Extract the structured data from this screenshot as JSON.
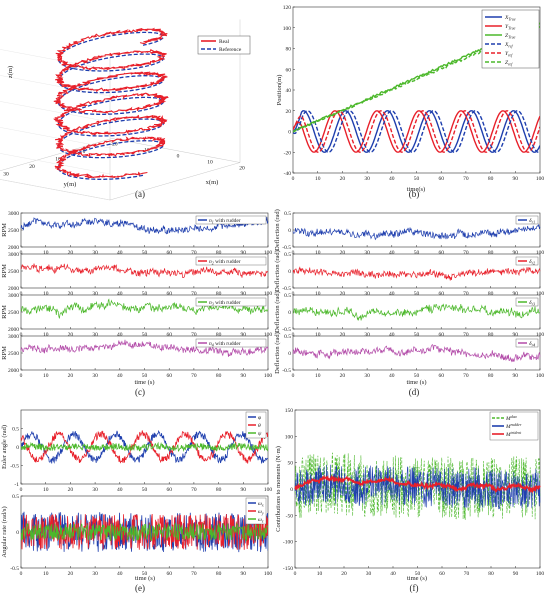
{
  "figure": {
    "captions": [
      "(a)",
      "(b)",
      "(c)",
      "(d)",
      "(e)",
      "(f)"
    ]
  },
  "chart_data": [
    {
      "id": "a",
      "type": "line",
      "projection": "3d",
      "legend": [
        "Real",
        "Reference"
      ],
      "legend_position": "top-right",
      "colors": [
        "#e8202a",
        "#1f3fae"
      ],
      "zlabel": "z(m)",
      "ylabel_3d": "y(m)",
      "xlabel_3d": "x(m)",
      "zticks": [
        "0",
        "20",
        "40",
        "60",
        "80",
        "100"
      ],
      "yticks": [
        "40",
        "30",
        "20",
        "10",
        "0"
      ],
      "xticks": [
        "-20",
        "-10",
        "0",
        "10",
        "20"
      ],
      "helix": {
        "turns": 6,
        "z_range": [
          0,
          100
        ],
        "radius_m": 10,
        "period_s": 17,
        "duration_s": 100
      }
    },
    {
      "id": "b",
      "type": "line",
      "ylabel": "Position(m)",
      "xlabel": "time(s)",
      "xlim": [
        0,
        100
      ],
      "ylim": [
        -40,
        120
      ],
      "xticks": [
        "0",
        "10",
        "20",
        "30",
        "40",
        "50",
        "60",
        "70",
        "80",
        "90",
        "100"
      ],
      "yticks": [
        "-40",
        "-20",
        "0",
        "20",
        "40",
        "60",
        "80",
        "100",
        "120"
      ],
      "legend_position": "top-right",
      "series": [
        {
          "name": "X_True",
          "sub": "True",
          "base": "X",
          "color": "#1f3fae",
          "style": "solid",
          "kind": "sine",
          "amp": 20,
          "period": 17,
          "phase": 0,
          "offset": 0
        },
        {
          "name": "Y_True",
          "sub": "True",
          "base": "Y",
          "color": "#e8202a",
          "style": "solid",
          "kind": "sine",
          "amp": 20,
          "period": 17,
          "phase": 1.5708,
          "offset": 0
        },
        {
          "name": "Z_True",
          "sub": "True",
          "base": "Z",
          "color": "#4cb82b",
          "style": "solid",
          "kind": "ramp",
          "start": 0,
          "end": 104
        },
        {
          "name": "X_ref",
          "sub": "ref",
          "base": "X",
          "color": "#1f3fae",
          "style": "dashed",
          "kind": "sine",
          "amp": 20,
          "period": 17,
          "phase": -0.6,
          "offset": 0
        },
        {
          "name": "Y_ref",
          "sub": "ref",
          "base": "Y",
          "color": "#e8202a",
          "style": "dashed",
          "kind": "sine",
          "amp": 20,
          "period": 17,
          "phase": 0.97,
          "offset": 0
        },
        {
          "name": "Z_ref",
          "sub": "ref",
          "base": "Z",
          "color": "#4cb82b",
          "style": "dashed",
          "kind": "ramp",
          "start": 0,
          "end": 101
        }
      ]
    },
    {
      "id": "c",
      "type": "line",
      "xlabel": "time (s)",
      "xlim": [
        0,
        100
      ],
      "xticks": [
        "0",
        "10",
        "20",
        "30",
        "40",
        "50",
        "60",
        "70",
        "80",
        "90",
        "100"
      ],
      "panels": [
        {
          "ylabel": "RPM",
          "ylim": [
            2000,
            3000
          ],
          "yticks": [
            "2000",
            "2500",
            "3000"
          ],
          "color": "#1f3fae",
          "legend": "n",
          "legend_sub": "1",
          "legend_tail": " with rudder",
          "mean": 2600,
          "noise": 230
        },
        {
          "ylabel": "RPM",
          "ylim": [
            2000,
            3000
          ],
          "yticks": [
            "2000",
            "2500",
            "3000"
          ],
          "color": "#e8202a",
          "legend": "n",
          "legend_sub": "2",
          "legend_tail": " with rudder",
          "mean": 2600,
          "noise": 260
        },
        {
          "ylabel": "RPM",
          "ylim": [
            2000,
            3000
          ],
          "yticks": [
            "2000",
            "2500",
            "3000"
          ],
          "color": "#4cb82b",
          "legend": "n",
          "legend_sub": "3",
          "legend_tail": " with rudder",
          "mean": 2600,
          "noise": 230
        },
        {
          "ylabel": "RPM",
          "ylim": [
            2000,
            3000
          ],
          "yticks": [
            "2000",
            "2500",
            "3000"
          ],
          "color": "#b24aa8",
          "legend": "n",
          "legend_sub": "4",
          "legend_tail": " with rudder",
          "mean": 2600,
          "noise": 230
        }
      ]
    },
    {
      "id": "d",
      "type": "line",
      "xlabel": "time (s)",
      "xlim": [
        0,
        100
      ],
      "xticks": [
        "0",
        "10",
        "20",
        "30",
        "40",
        "50",
        "60",
        "70",
        "80",
        "90",
        "100"
      ],
      "panels": [
        {
          "ylabel": "Deflection (rad)",
          "ylim": [
            -0.5,
            0.5
          ],
          "yticks": [
            "-0.5",
            "0",
            "0.5"
          ],
          "color": "#1f3fae",
          "legend": "δ",
          "legend_sub": "r1",
          "mean": 0,
          "noise": 0.22
        },
        {
          "ylabel": "Deflection (rad)",
          "ylim": [
            -0.5,
            0.5
          ],
          "yticks": [
            "-0.5",
            "0",
            "0.5"
          ],
          "color": "#e8202a",
          "legend": "δ",
          "legend_sub": "r2",
          "mean": 0,
          "noise": 0.22
        },
        {
          "ylabel": "Deflection (rad)",
          "ylim": [
            -0.5,
            0.5
          ],
          "yticks": [
            "-0.5",
            "0",
            "0.5"
          ],
          "color": "#4cb82b",
          "legend": "δ",
          "legend_sub": "r3",
          "mean": 0,
          "noise": 0.22
        },
        {
          "ylabel": "Deflection (rad)",
          "ylim": [
            -0.5,
            0.5
          ],
          "yticks": [
            "-0.5",
            "0",
            "0.5"
          ],
          "color": "#b24aa8",
          "legend": "δ",
          "legend_sub": "r4",
          "mean": 0,
          "noise": 0.22
        }
      ]
    },
    {
      "id": "e",
      "type": "line",
      "xlabel": "time (s)",
      "xlim": [
        0,
        100
      ],
      "xticks": [
        "0",
        "10",
        "20",
        "30",
        "40",
        "50",
        "60",
        "70",
        "80",
        "90",
        "100"
      ],
      "panels": [
        {
          "ylabel": "Euler angle (rad)",
          "ylim": [
            -1,
            1
          ],
          "yticks": [
            "-1",
            "-0.5",
            "0",
            "0.5"
          ],
          "legend_position": "top-right",
          "series": [
            {
              "name": "φ",
              "color": "#1f3fae",
              "amp": 0.35,
              "period": 17,
              "phase": 0.0,
              "noise": 0.1
            },
            {
              "name": "θ",
              "color": "#e8202a",
              "amp": 0.35,
              "period": 17,
              "phase": 2.2,
              "noise": 0.1
            },
            {
              "name": "ψ",
              "color": "#4cb82b",
              "amp": 0.02,
              "period": 17,
              "phase": 0.0,
              "noise": 0.09
            }
          ]
        },
        {
          "ylabel": "Angular rate (rad/s)",
          "ylim": [
            -0.5,
            0.5
          ],
          "yticks": [
            "-0.5",
            "0",
            "0.5"
          ],
          "legend_position": "top-right",
          "series": [
            {
              "name": "ω",
              "sub": "x",
              "color": "#1f3fae",
              "noise": 0.28
            },
            {
              "name": "ω",
              "sub": "y",
              "color": "#e8202a",
              "noise": 0.25
            },
            {
              "name": "ω",
              "sub": "z",
              "color": "#4cb82b",
              "noise": 0.12
            }
          ]
        }
      ]
    },
    {
      "id": "f",
      "type": "line",
      "ylabel": "Contributions to moments (N·m)",
      "xlabel": "time (s)",
      "xlim": [
        0,
        100
      ],
      "ylim": [
        -150,
        150
      ],
      "xticks": [
        "0",
        "10",
        "20",
        "30",
        "40",
        "50",
        "60",
        "70",
        "80",
        "90",
        "100"
      ],
      "yticks": [
        "-150",
        "-100",
        "-50",
        "0",
        "50",
        "100",
        "150"
      ],
      "legend_position": "top-right",
      "series": [
        {
          "name": "M",
          "sup": "dua",
          "color": "#4cb82b",
          "style": "dashed",
          "noise": 60
        },
        {
          "name": "M",
          "sup": "rudder",
          "color": "#1f3fae",
          "style": "solid",
          "noise": 38
        },
        {
          "name": "M",
          "sup": "trident",
          "color": "#e8202a",
          "style": "solid",
          "noise": 4
        }
      ]
    }
  ]
}
